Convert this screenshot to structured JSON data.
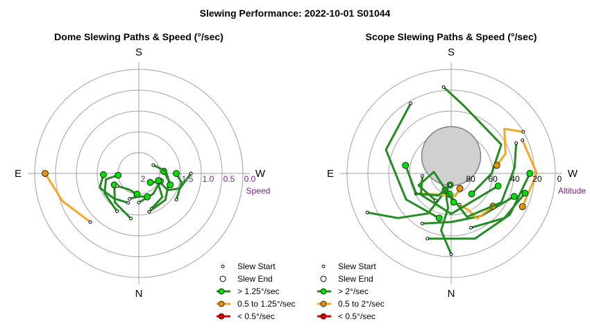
{
  "suptitle": "Slewing Performance: 2022-10-01 S01044",
  "chart_data": [
    {
      "type": "polar-line",
      "title": "Dome Slewing Paths & Speed (°/sec)",
      "compass": {
        "top": "S",
        "left": "E",
        "right": "W",
        "bottom": "N"
      },
      "radial_axis": {
        "label": "Speed",
        "ticks": [
          "2",
          "1.5",
          "1.0",
          "0.5",
          "0.0"
        ],
        "range": [
          2.5,
          0.0
        ]
      },
      "legend": {
        "start": "Slew Start",
        "end": "Slew End",
        "fast": "> 1.25°/sec",
        "mid": "0.5 to 1.25°/sec",
        "slow": "< 0.5°/sec"
      },
      "speed_colors": {
        "fast": "#228B22",
        "mid": "#F5A623",
        "slow": "#E00000"
      },
      "marker_colors": {
        "fast": "#00E000",
        "mid": "#E69500",
        "slow": "#E00000"
      },
      "series": [
        {
          "speed_class": "mid",
          "points": [
            [
              135,
              0.85
            ],
            [
              110,
              0.55
            ],
            [
              90,
              0.25
            ]
          ]
        },
        {
          "speed_class": "fast",
          "points": [
            [
              160,
              1.75
            ],
            [
              135,
              1.65
            ],
            [
              110,
              1.5
            ],
            [
              92,
              1.65
            ]
          ]
        },
        {
          "speed_class": "fast",
          "points": [
            [
              200,
              1.6
            ],
            [
              225,
              1.7
            ],
            [
              245,
              2.0
            ],
            [
              232,
              2.15
            ]
          ]
        },
        {
          "speed_class": "fast",
          "points": [
            [
              150,
              1.45
            ],
            [
              120,
              1.55
            ],
            [
              100,
              1.7
            ],
            [
              95,
              2.0
            ]
          ]
        },
        {
          "speed_class": "fast",
          "points": [
            [
              170,
              1.4
            ],
            [
              140,
              1.6
            ],
            [
              115,
              1.85
            ]
          ]
        },
        {
          "speed_class": "fast",
          "points": [
            [
              180,
              1.8
            ],
            [
              215,
              1.9
            ],
            [
              250,
              1.95
            ]
          ]
        },
        {
          "speed_class": "fast",
          "points": [
            [
              195,
              1.55
            ],
            [
              225,
              1.6
            ],
            [
              255,
              1.75
            ],
            [
              275,
              1.9
            ]
          ]
        },
        {
          "speed_class": "fast",
          "points": [
            [
              300,
              2.1
            ],
            [
              275,
              1.85
            ],
            [
              250,
              1.7
            ]
          ]
        },
        {
          "speed_class": "fast",
          "points": [
            [
              235,
              1.4
            ],
            [
              258,
              1.45
            ],
            [
              270,
              1.6
            ]
          ]
        },
        {
          "speed_class": "fast",
          "points": [
            [
              270,
              1.25
            ],
            [
              250,
              1.45
            ],
            [
              240,
              1.7
            ],
            [
              250,
              2.0
            ]
          ]
        },
        {
          "speed_class": "fast",
          "points": [
            [
              160,
              1.85
            ],
            [
              180,
              1.95
            ],
            [
              200,
              1.9
            ]
          ]
        },
        {
          "speed_class": "fast",
          "points": [
            [
              120,
              1.9
            ],
            [
              150,
              2.05
            ],
            [
              175,
              2.0
            ]
          ]
        }
      ]
    },
    {
      "type": "polar-line",
      "title": "Scope Slewing Paths & Speed (°/sec)",
      "compass": {
        "top": "S",
        "left": "E",
        "right": "W",
        "bottom": "N"
      },
      "radial_axis": {
        "label": "Altitude",
        "ticks": [
          "80",
          "60",
          "40",
          "20",
          "0"
        ],
        "range": [
          90,
          0
        ]
      },
      "legend": {
        "start": "Slew Start",
        "end": "Slew End",
        "fast": "> 2°/sec",
        "mid": "0.5 to 2°/sec",
        "slow": "< 0.5°/sec"
      },
      "speed_colors": {
        "fast": "#228B22",
        "mid": "#F5A623",
        "slow": "#E00000"
      },
      "marker_colors": {
        "fast": "#00E000",
        "mid": "#E69500",
        "slow": "#E00000"
      },
      "exclusion_zone": {
        "az": 0,
        "alt": 75,
        "radius_deg": 15
      },
      "series": [
        {
          "speed_class": "fast",
          "points": [
            [
              180,
              20
            ],
            [
              170,
              40
            ],
            [
              175,
              60
            ],
            [
              160,
              75
            ]
          ]
        },
        {
          "speed_class": "fast",
          "points": [
            [
              115,
              10
            ],
            [
              130,
              30
            ],
            [
              150,
              50
            ],
            [
              175,
              80
            ]
          ]
        },
        {
          "speed_class": "fast",
          "points": [
            [
              160,
              30
            ],
            [
              200,
              30
            ],
            [
              235,
              28
            ],
            [
              270,
              22
            ]
          ]
        },
        {
          "speed_class": "fast",
          "points": [
            [
              150,
              40
            ],
            [
              180,
              48
            ],
            [
              215,
              45
            ],
            [
              250,
              32
            ]
          ]
        },
        {
          "speed_class": "mid",
          "points": [
            [
              195,
              62
            ],
            [
              205,
              55
            ],
            [
              210,
              45
            ],
            [
              232,
              44
            ]
          ]
        },
        {
          "speed_class": "mid",
          "points": [
            [
              120,
              55
            ],
            [
              145,
              68
            ],
            [
              190,
              70
            ],
            [
              210,
              75
            ]
          ]
        },
        {
          "speed_class": "fast",
          "points": [
            [
              95,
              65
            ],
            [
              125,
              58
            ],
            [
              180,
              55
            ],
            [
              255,
              48
            ]
          ]
        },
        {
          "speed_class": "fast",
          "points": [
            [
              30,
              20
            ],
            [
              70,
              30
            ],
            [
              120,
              45
            ],
            [
              165,
              50
            ]
          ]
        },
        {
          "speed_class": "fast",
          "points": [
            [
              5,
              15
            ],
            [
              350,
              30
            ],
            [
              300,
              40
            ],
            [
              270,
              55
            ],
            [
              225,
              65
            ]
          ]
        },
        {
          "speed_class": "fast",
          "points": [
            [
              175,
              80
            ],
            [
              150,
              68
            ],
            [
              120,
              55
            ],
            [
              80,
              50
            ]
          ]
        },
        {
          "speed_class": "fast",
          "points": [
            [
              295,
              28
            ],
            [
              275,
              35
            ],
            [
              240,
              40
            ],
            [
              200,
              50
            ],
            [
              175,
              72
            ]
          ]
        },
        {
          "speed_class": "mid",
          "points": [
            [
              300,
              18
            ],
            [
              310,
              30
            ],
            [
              290,
              40
            ],
            [
              280,
              50
            ]
          ]
        },
        {
          "speed_class": "mid",
          "points": [
            [
              295,
              22
            ],
            [
              270,
              16
            ],
            [
              245,
              22
            ]
          ]
        },
        {
          "speed_class": "fast",
          "points": [
            [
              150,
              63
            ],
            [
              110,
              60
            ],
            [
              85,
              75
            ],
            [
              185,
              65
            ]
          ]
        },
        {
          "speed_class": "fast",
          "points": [
            [
              200,
              40
            ],
            [
              230,
              30
            ],
            [
              255,
              24
            ]
          ]
        }
      ]
    }
  ]
}
